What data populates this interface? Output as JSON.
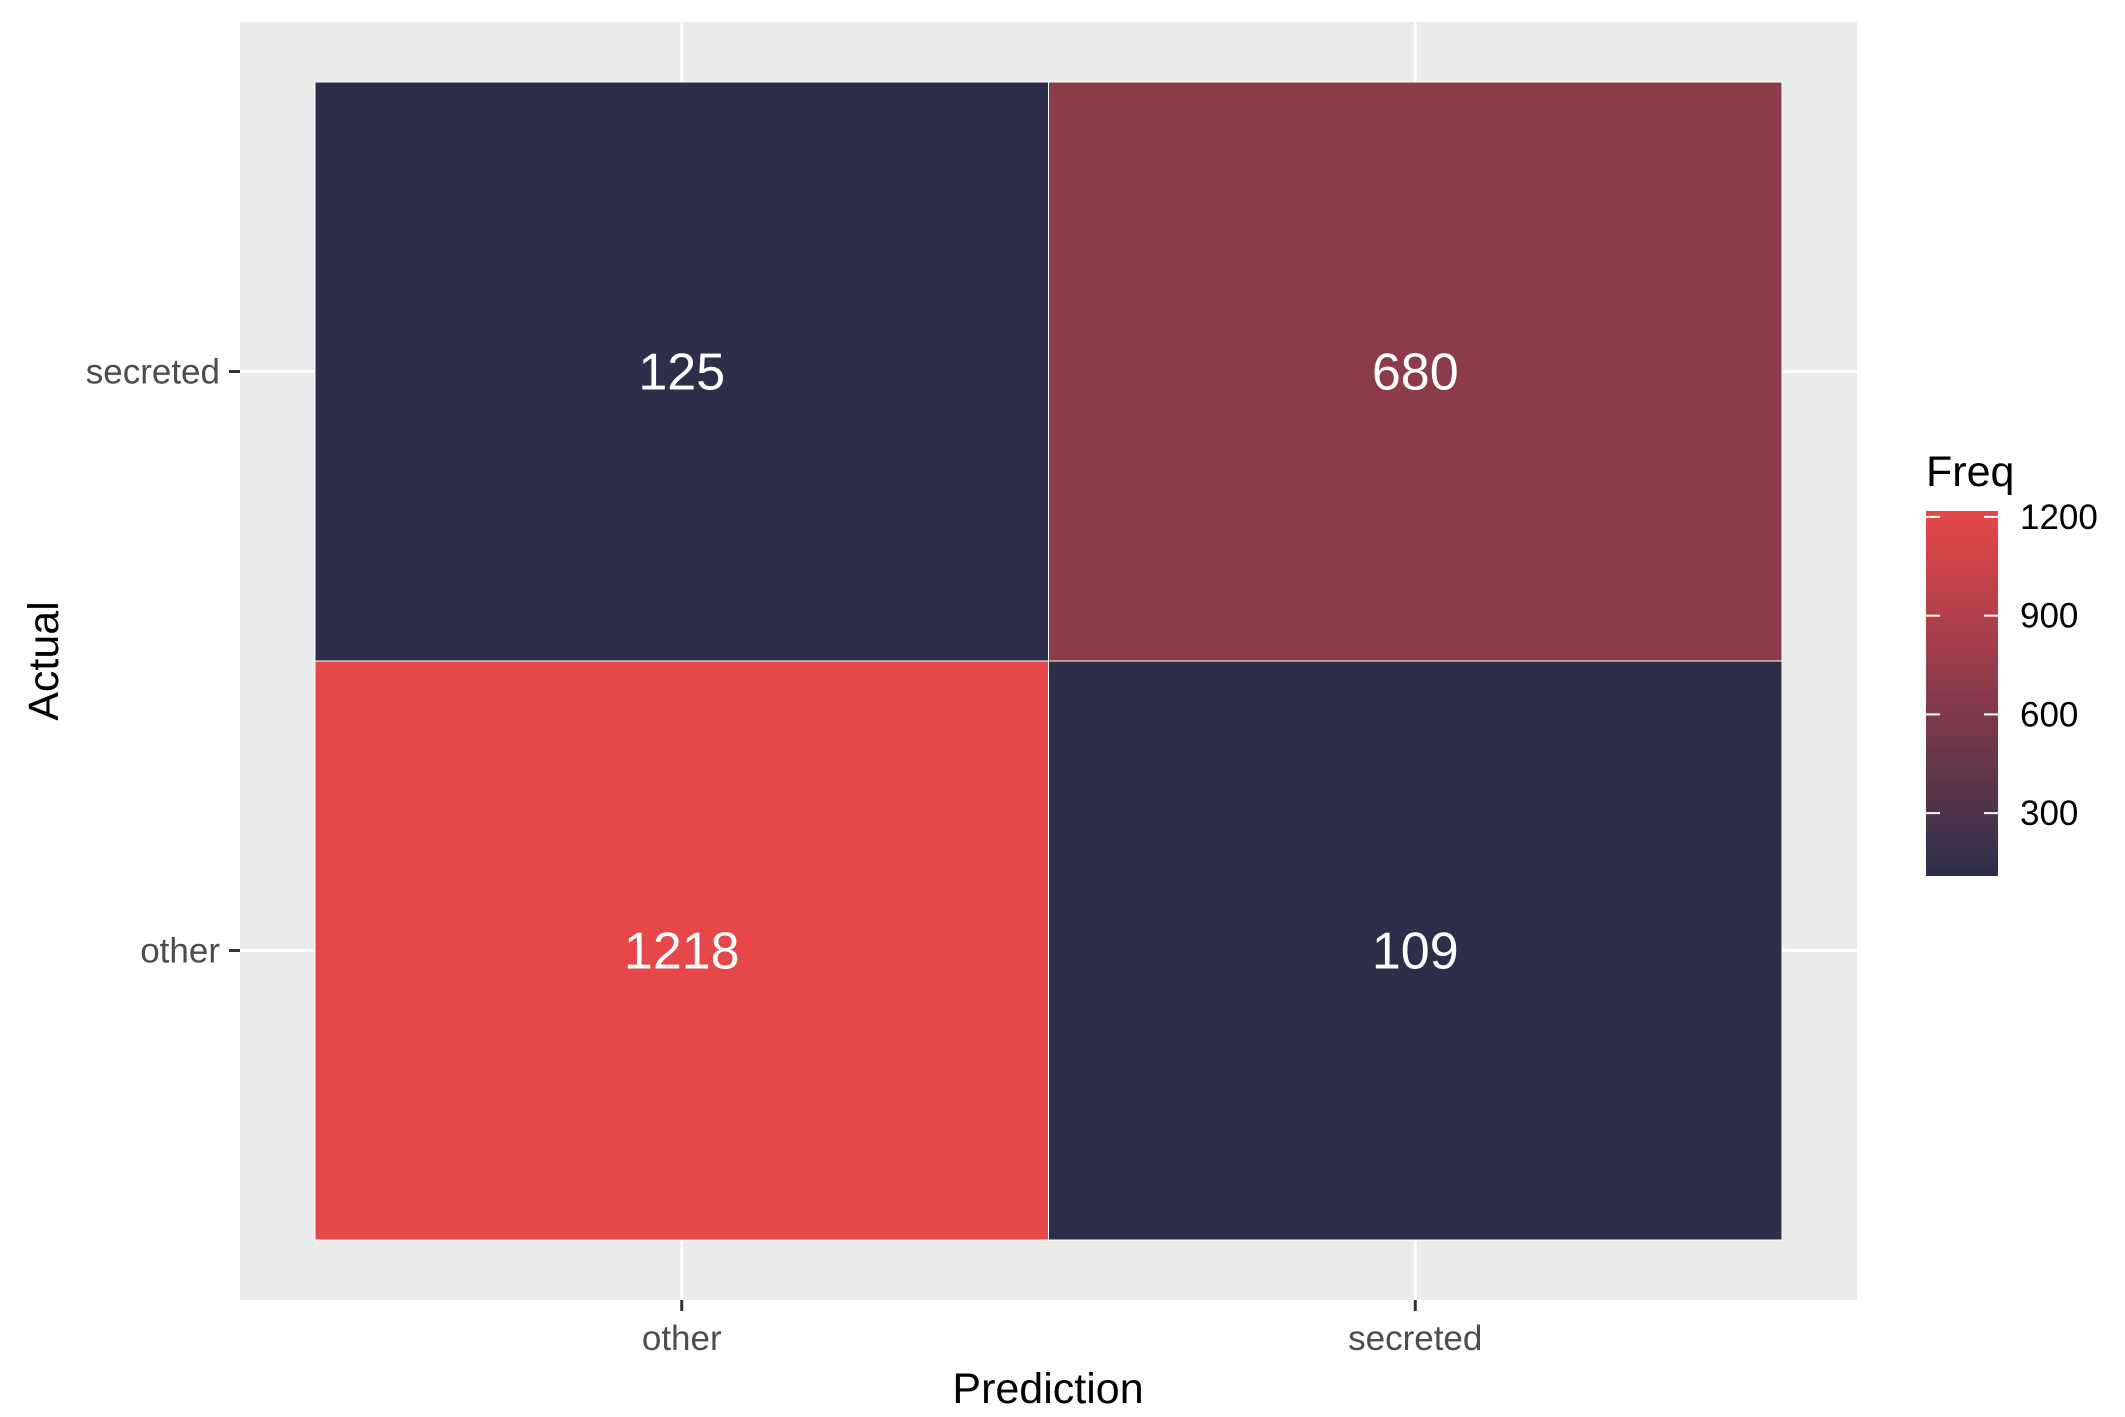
{
  "chart_data": {
    "type": "heatmap",
    "title": "",
    "xlabel": "Prediction",
    "ylabel": "Actual",
    "x_categories": [
      "other",
      "secreted"
    ],
    "y_categories": [
      "other",
      "secreted"
    ],
    "cells": [
      {
        "x": "other",
        "y": "secreted",
        "value": 125
      },
      {
        "x": "secreted",
        "y": "secreted",
        "value": 680
      },
      {
        "x": "other",
        "y": "other",
        "value": 1218
      },
      {
        "x": "secreted",
        "y": "other",
        "value": 109
      }
    ],
    "legend": {
      "title": "Freq",
      "ticks": [
        300,
        600,
        900,
        1200
      ],
      "range": [
        109,
        1218
      ],
      "position": "right"
    },
    "color_scale": {
      "low": "#2c2e4a",
      "high": "#e64749"
    },
    "panel_background": "#ebebeb",
    "grid": true
  }
}
